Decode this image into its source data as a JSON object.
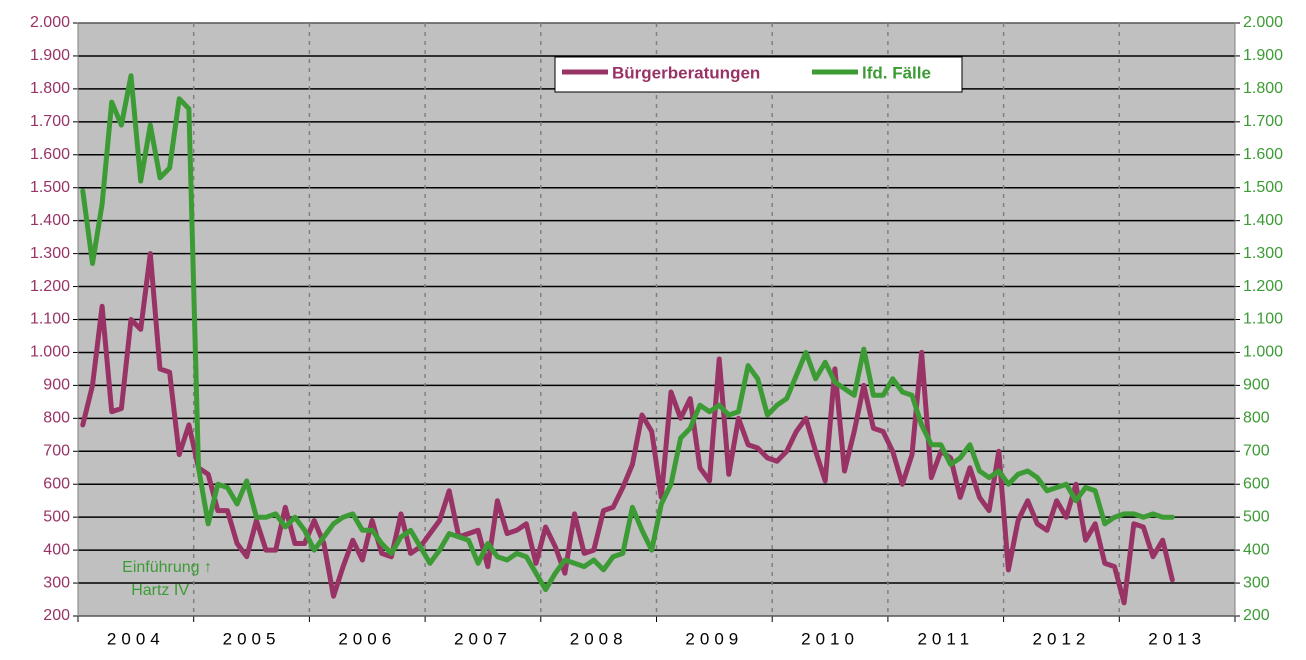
{
  "chart_data": {
    "type": "line",
    "categories": [
      "2004",
      null,
      null,
      null,
      null,
      null,
      null,
      null,
      null,
      null,
      null,
      null,
      "2005",
      null,
      null,
      null,
      null,
      null,
      null,
      null,
      null,
      null,
      null,
      null,
      "2006",
      null,
      null,
      null,
      null,
      null,
      null,
      null,
      null,
      null,
      null,
      null,
      "2007",
      null,
      null,
      null,
      null,
      null,
      null,
      null,
      null,
      null,
      null,
      null,
      "2008",
      null,
      null,
      null,
      null,
      null,
      null,
      null,
      null,
      null,
      null,
      null,
      "2009",
      null,
      null,
      null,
      null,
      null,
      null,
      null,
      null,
      null,
      null,
      null,
      "2010",
      null,
      null,
      null,
      null,
      null,
      null,
      null,
      null,
      null,
      null,
      null,
      "2011",
      null,
      null,
      null,
      null,
      null,
      null,
      null,
      null,
      null,
      null,
      null,
      "2012",
      null,
      null,
      null,
      null,
      null,
      null,
      null,
      null,
      null,
      null,
      null,
      "2013",
      null,
      null,
      null,
      null,
      null,
      null,
      null,
      null,
      null,
      null,
      null
    ],
    "series": [
      {
        "name": "Bürgerberatungen",
        "color": "#993366",
        "values": [
          780,
          900,
          1140,
          820,
          830,
          1100,
          1070,
          1300,
          950,
          940,
          690,
          780,
          650,
          630,
          520,
          520,
          420,
          380,
          490,
          400,
          400,
          530,
          420,
          420,
          490,
          420,
          260,
          350,
          430,
          370,
          490,
          390,
          380,
          510,
          390,
          410,
          450,
          490,
          580,
          440,
          450,
          460,
          350,
          550,
          450,
          460,
          480,
          360,
          470,
          410,
          330,
          510,
          390,
          400,
          520,
          530,
          590,
          660,
          810,
          760,
          560,
          880,
          800,
          860,
          650,
          610,
          980,
          630,
          800,
          720,
          710,
          680,
          670,
          700,
          760,
          800,
          700,
          610,
          950,
          640,
          760,
          900,
          770,
          760,
          700,
          600,
          690,
          1000,
          620,
          700,
          680,
          560,
          650,
          560,
          520,
          700,
          340,
          490,
          550,
          480,
          460,
          550,
          500,
          600,
          430,
          480,
          360,
          350,
          240,
          480,
          470,
          380,
          430,
          310,
          null,
          null,
          null,
          null,
          null,
          null
        ]
      },
      {
        "name": "lfd. Fälle",
        "color": "#3d9b35",
        "axis": "y2",
        "values": [
          1490,
          1270,
          1450,
          1760,
          1690,
          1840,
          1520,
          1690,
          1530,
          1560,
          1770,
          1740,
          650,
          480,
          600,
          590,
          540,
          610,
          500,
          500,
          510,
          470,
          500,
          460,
          400,
          440,
          480,
          500,
          510,
          460,
          460,
          420,
          390,
          440,
          460,
          410,
          360,
          400,
          450,
          440,
          430,
          360,
          420,
          380,
          370,
          390,
          380,
          330,
          280,
          330,
          370,
          360,
          350,
          370,
          340,
          380,
          390,
          530,
          460,
          400,
          540,
          600,
          740,
          770,
          840,
          820,
          840,
          810,
          820,
          960,
          920,
          810,
          840,
          860,
          930,
          1000,
          920,
          970,
          910,
          890,
          870,
          1010,
          870,
          870,
          920,
          880,
          870,
          780,
          720,
          720,
          660,
          680,
          720,
          640,
          620,
          640,
          600,
          630,
          640,
          620,
          580,
          590,
          600,
          550,
          590,
          580,
          480,
          500,
          510,
          510,
          500,
          510,
          500,
          500,
          null,
          null,
          null,
          null,
          null,
          null
        ]
      }
    ],
    "ylim": [
      200,
      2000
    ],
    "yticks": [
      {
        "value": 2000,
        "label": "2.000"
      },
      {
        "value": 1900,
        "label": "1.900"
      },
      {
        "value": 1800,
        "label": "1.800"
      },
      {
        "value": 1700,
        "label": "1.700"
      },
      {
        "value": 1600,
        "label": "1.600"
      },
      {
        "value": 1500,
        "label": "1.500"
      },
      {
        "value": 1400,
        "label": "1.400"
      },
      {
        "value": 1300,
        "label": "1.300"
      },
      {
        "value": 1200,
        "label": "1.200"
      },
      {
        "value": 1100,
        "label": "1.100"
      },
      {
        "value": 1000,
        "label": "1.000"
      },
      900,
      800,
      700,
      600,
      500,
      400,
      300,
      200
    ],
    "y2lim": [
      200,
      2000
    ],
    "y2ticks": [
      {
        "value": 2000,
        "label": "2.000"
      },
      {
        "value": 1900,
        "label": "1.900"
      },
      {
        "value": 1800,
        "label": "1.800"
      },
      {
        "value": 1700,
        "label": "1.700"
      },
      {
        "value": 1600,
        "label": "1.600"
      },
      {
        "value": 1500,
        "label": "1.500"
      },
      {
        "value": 1400,
        "label": "1.400"
      },
      {
        "value": 1300,
        "label": "1.300"
      },
      {
        "value": 1200,
        "label": "1.200"
      },
      {
        "value": 1100,
        "label": "1.100"
      },
      {
        "value": 1000,
        "label": "1.000"
      },
      900,
      800,
      700,
      600,
      500,
      400,
      300,
      200
    ],
    "annotations": [
      "Einführung ↑",
      "Hartz IV"
    ],
    "grid": true,
    "legend": "top"
  }
}
